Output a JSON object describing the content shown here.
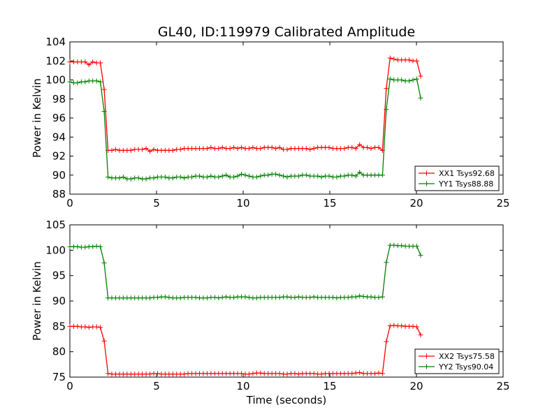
{
  "chart_data": {
    "title": "GL40, ID:119979 Calibrated Amplitude",
    "xlabel": "Time (seconds)",
    "colors": {
      "red": "#ff0000",
      "green": "#008000"
    },
    "subplots": [
      {
        "type": "line",
        "xlim": [
          0,
          25
        ],
        "ylim": [
          88,
          104
        ],
        "xticks": [
          "0",
          "5",
          "10",
          "15",
          "20",
          "25"
        ],
        "yticks": [
          "88",
          "90",
          "92",
          "94",
          "96",
          "98",
          "100",
          "102",
          "104"
        ],
        "ylabel": "Power in Kelvin",
        "legend_position": "lower-right",
        "series": [
          {
            "name": "XX1 Tsys92.68",
            "color": "#ff0000",
            "x": [
              0.0,
              0.22,
              0.44,
              0.66,
              0.88,
              1.1,
              1.32,
              1.54,
              1.76,
              1.98,
              2.2,
              2.42,
              2.64,
              2.86,
              3.08,
              3.3,
              3.52,
              3.74,
              3.96,
              4.18,
              4.4,
              4.62,
              4.84,
              5.06,
              5.28,
              5.5,
              5.72,
              5.94,
              6.16,
              6.38,
              6.6,
              6.82,
              7.04,
              7.26,
              7.48,
              7.7,
              7.92,
              8.14,
              8.36,
              8.58,
              8.8,
              9.02,
              9.24,
              9.46,
              9.68,
              9.9,
              10.12,
              10.34,
              10.56,
              10.78,
              11.0,
              11.22,
              11.44,
              11.66,
              11.88,
              12.1,
              12.32,
              12.54,
              12.76,
              12.98,
              13.2,
              13.42,
              13.64,
              13.86,
              14.08,
              14.3,
              14.52,
              14.74,
              14.96,
              15.18,
              15.4,
              15.62,
              15.84,
              16.06,
              16.28,
              16.5,
              16.72,
              16.94,
              17.16,
              17.38,
              17.6,
              17.82,
              18.04,
              18.26,
              18.48,
              18.7,
              18.92,
              19.14,
              19.36,
              19.58,
              19.8,
              20.02,
              20.24
            ],
            "y": [
              101.9,
              101.9,
              101.9,
              101.9,
              101.9,
              101.6,
              101.9,
              101.8,
              101.8,
              99.0,
              92.6,
              92.6,
              92.7,
              92.6,
              92.6,
              92.6,
              92.6,
              92.7,
              92.7,
              92.7,
              92.8,
              92.5,
              92.7,
              92.6,
              92.6,
              92.6,
              92.6,
              92.6,
              92.7,
              92.7,
              92.8,
              92.8,
              92.8,
              92.8,
              92.8,
              92.8,
              92.8,
              92.9,
              92.8,
              92.8,
              92.9,
              92.8,
              92.8,
              92.9,
              92.8,
              92.9,
              92.8,
              92.8,
              92.9,
              92.8,
              92.8,
              92.9,
              92.9,
              92.9,
              92.8,
              92.9,
              92.7,
              92.7,
              92.8,
              92.8,
              92.8,
              92.8,
              92.8,
              92.7,
              92.8,
              92.9,
              92.9,
              92.9,
              92.9,
              92.8,
              92.8,
              92.8,
              92.8,
              92.9,
              92.9,
              92.8,
              93.2,
              92.9,
              92.9,
              92.8,
              92.9,
              92.9,
              92.6,
              99.1,
              102.3,
              102.2,
              102.1,
              102.1,
              102.1,
              102.1,
              102.0,
              102.0,
              100.4
            ]
          },
          {
            "name": "YY1 Tsys88.88",
            "color": "#008000",
            "x": [
              0.0,
              0.22,
              0.44,
              0.66,
              0.88,
              1.1,
              1.32,
              1.54,
              1.76,
              1.98,
              2.2,
              2.42,
              2.64,
              2.86,
              3.08,
              3.3,
              3.52,
              3.74,
              3.96,
              4.18,
              4.4,
              4.62,
              4.84,
              5.06,
              5.28,
              5.5,
              5.72,
              5.94,
              6.16,
              6.38,
              6.6,
              6.82,
              7.04,
              7.26,
              7.48,
              7.7,
              7.92,
              8.14,
              8.36,
              8.58,
              8.8,
              9.02,
              9.24,
              9.46,
              9.68,
              9.9,
              10.12,
              10.34,
              10.56,
              10.78,
              11.0,
              11.22,
              11.44,
              11.66,
              11.88,
              12.1,
              12.32,
              12.54,
              12.76,
              12.98,
              13.2,
              13.42,
              13.64,
              13.86,
              14.08,
              14.3,
              14.52,
              14.74,
              14.96,
              15.18,
              15.4,
              15.62,
              15.84,
              16.06,
              16.28,
              16.5,
              16.72,
              16.94,
              17.16,
              17.38,
              17.6,
              17.82,
              18.04,
              18.26,
              18.48,
              18.7,
              18.92,
              19.14,
              19.36,
              19.58,
              19.8,
              20.02,
              20.24
            ],
            "y": [
              99.8,
              99.7,
              99.7,
              99.8,
              99.8,
              99.9,
              99.9,
              99.9,
              99.8,
              96.7,
              89.8,
              89.7,
              89.7,
              89.7,
              89.8,
              89.6,
              89.6,
              89.7,
              89.7,
              89.6,
              89.6,
              89.7,
              89.7,
              89.8,
              89.8,
              89.8,
              89.7,
              89.7,
              89.8,
              89.8,
              89.7,
              89.8,
              89.8,
              89.9,
              89.9,
              89.8,
              89.8,
              89.9,
              89.8,
              89.8,
              89.9,
              90.0,
              89.8,
              89.8,
              89.9,
              90.1,
              90.0,
              89.9,
              89.8,
              89.8,
              89.9,
              90.0,
              90.0,
              90.1,
              90.1,
              90.0,
              89.9,
              89.8,
              89.9,
              89.9,
              89.9,
              90.0,
              90.0,
              89.9,
              89.9,
              89.9,
              89.8,
              89.9,
              89.9,
              89.8,
              89.8,
              89.9,
              89.9,
              90.0,
              90.0,
              89.9,
              90.3,
              90.0,
              90.0,
              90.0,
              90.0,
              90.0,
              90.0,
              96.9,
              100.1,
              100.0,
              100.0,
              100.0,
              99.9,
              99.9,
              100.0,
              100.1,
              98.1
            ]
          }
        ]
      },
      {
        "type": "line",
        "xlim": [
          0,
          25
        ],
        "ylim": [
          75,
          105
        ],
        "xticks": [
          "0",
          "5",
          "10",
          "15",
          "20",
          "25"
        ],
        "yticks": [
          "75",
          "80",
          "85",
          "90",
          "95",
          "100",
          "105"
        ],
        "ylabel": "Power in Kelvin",
        "legend_position": "lower-right",
        "series": [
          {
            "name": "XX2 Tsys75.58",
            "color": "#ff0000",
            "x": [
              0.0,
              0.22,
              0.44,
              0.66,
              0.88,
              1.1,
              1.32,
              1.54,
              1.76,
              1.98,
              2.2,
              2.42,
              2.64,
              2.86,
              3.08,
              3.3,
              3.52,
              3.74,
              3.96,
              4.18,
              4.4,
              4.62,
              4.84,
              5.06,
              5.28,
              5.5,
              5.72,
              5.94,
              6.16,
              6.38,
              6.6,
              6.82,
              7.04,
              7.26,
              7.48,
              7.7,
              7.92,
              8.14,
              8.36,
              8.58,
              8.8,
              9.02,
              9.24,
              9.46,
              9.68,
              9.9,
              10.12,
              10.34,
              10.56,
              10.78,
              11.0,
              11.22,
              11.44,
              11.66,
              11.88,
              12.1,
              12.32,
              12.54,
              12.76,
              12.98,
              13.2,
              13.42,
              13.64,
              13.86,
              14.08,
              14.3,
              14.52,
              14.74,
              14.96,
              15.18,
              15.4,
              15.62,
              15.84,
              16.06,
              16.28,
              16.5,
              16.72,
              16.94,
              17.16,
              17.38,
              17.6,
              17.82,
              18.04,
              18.26,
              18.48,
              18.7,
              18.92,
              19.14,
              19.36,
              19.58,
              19.8,
              20.02,
              20.24
            ],
            "y": [
              85.0,
              85.0,
              85.0,
              84.9,
              84.9,
              84.8,
              84.9,
              84.9,
              84.8,
              82.1,
              75.7,
              75.6,
              75.6,
              75.6,
              75.6,
              75.6,
              75.6,
              75.6,
              75.6,
              75.6,
              75.6,
              75.6,
              75.7,
              75.7,
              75.6,
              75.6,
              75.6,
              75.6,
              75.6,
              75.6,
              75.6,
              75.7,
              75.7,
              75.7,
              75.7,
              75.7,
              75.7,
              75.7,
              75.7,
              75.7,
              75.7,
              75.7,
              75.7,
              75.7,
              75.7,
              75.7,
              75.6,
              75.6,
              75.7,
              75.8,
              75.8,
              75.7,
              75.7,
              75.7,
              75.7,
              75.7,
              75.6,
              75.6,
              75.7,
              75.7,
              75.6,
              75.7,
              75.7,
              75.7,
              75.7,
              75.6,
              75.6,
              75.7,
              75.7,
              75.7,
              75.7,
              75.7,
              75.7,
              75.7,
              75.7,
              75.8,
              75.9,
              75.7,
              75.7,
              75.7,
              75.7,
              75.8,
              75.7,
              82.0,
              85.1,
              85.2,
              85.1,
              85.1,
              85.0,
              85.0,
              85.0,
              84.9,
              83.3
            ]
          },
          {
            "name": "YY2 Tsys90.04",
            "color": "#008000",
            "x": [
              0.0,
              0.22,
              0.44,
              0.66,
              0.88,
              1.1,
              1.32,
              1.54,
              1.76,
              1.98,
              2.2,
              2.42,
              2.64,
              2.86,
              3.08,
              3.3,
              3.52,
              3.74,
              3.96,
              4.18,
              4.4,
              4.62,
              4.84,
              5.06,
              5.28,
              5.5,
              5.72,
              5.94,
              6.16,
              6.38,
              6.6,
              6.82,
              7.04,
              7.26,
              7.48,
              7.7,
              7.92,
              8.14,
              8.36,
              8.58,
              8.8,
              9.02,
              9.24,
              9.46,
              9.68,
              9.9,
              10.12,
              10.34,
              10.56,
              10.78,
              11.0,
              11.22,
              11.44,
              11.66,
              11.88,
              12.1,
              12.32,
              12.54,
              12.76,
              12.98,
              13.2,
              13.42,
              13.64,
              13.86,
              14.08,
              14.3,
              14.52,
              14.74,
              14.96,
              15.18,
              15.4,
              15.62,
              15.84,
              16.06,
              16.28,
              16.5,
              16.72,
              16.94,
              17.16,
              17.38,
              17.6,
              17.82,
              18.04,
              18.26,
              18.48,
              18.7,
              18.92,
              19.14,
              19.36,
              19.58,
              19.8,
              20.02,
              20.24
            ],
            "y": [
              100.7,
              100.7,
              100.7,
              100.6,
              100.6,
              100.7,
              100.7,
              100.8,
              100.7,
              97.5,
              90.6,
              90.6,
              90.6,
              90.6,
              90.6,
              90.6,
              90.6,
              90.6,
              90.6,
              90.6,
              90.6,
              90.6,
              90.7,
              90.7,
              90.8,
              90.8,
              90.7,
              90.6,
              90.6,
              90.6,
              90.7,
              90.7,
              90.7,
              90.7,
              90.6,
              90.6,
              90.6,
              90.7,
              90.7,
              90.6,
              90.7,
              90.8,
              90.7,
              90.7,
              90.8,
              90.8,
              90.8,
              90.7,
              90.6,
              90.6,
              90.7,
              90.7,
              90.7,
              90.7,
              90.7,
              90.7,
              90.8,
              90.8,
              90.7,
              90.7,
              90.8,
              90.7,
              90.7,
              90.7,
              90.8,
              90.7,
              90.7,
              90.7,
              90.7,
              90.7,
              90.6,
              90.7,
              90.7,
              90.7,
              90.8,
              90.8,
              91.0,
              90.9,
              90.8,
              90.8,
              90.7,
              90.7,
              90.8,
              97.6,
              101.0,
              101.0,
              100.9,
              100.9,
              100.8,
              100.8,
              100.8,
              100.8,
              99.0
            ]
          }
        ]
      }
    ]
  }
}
